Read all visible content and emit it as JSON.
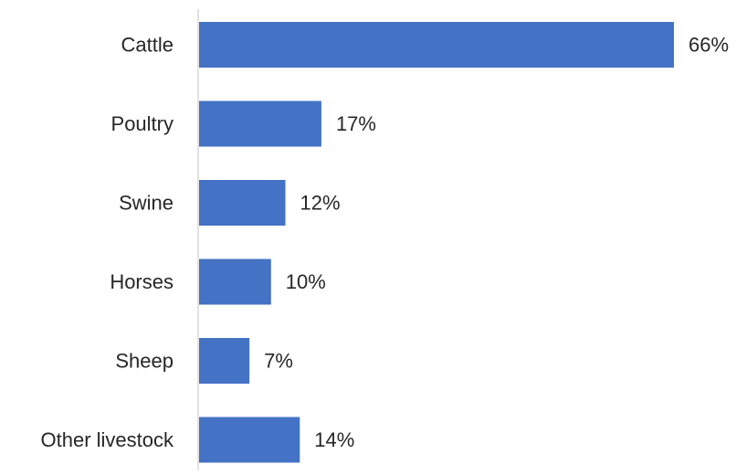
{
  "chart_data": {
    "type": "bar",
    "orientation": "horizontal",
    "categories": [
      "Cattle",
      "Poultry",
      "Swine",
      "Horses",
      "Sheep",
      "Other livestock"
    ],
    "values": [
      66,
      17,
      12,
      10,
      7,
      14
    ],
    "value_labels": [
      "66%",
      "17%",
      "12%",
      "10%",
      "7%",
      "14%"
    ],
    "unit": "%",
    "title": "",
    "xlabel": "",
    "ylabel": "",
    "xlim": [
      0,
      66
    ],
    "grid": false,
    "legend": "none",
    "colors": {
      "bar": "#4472C4",
      "axis": "#D9D9D9",
      "text": "#262626"
    }
  }
}
